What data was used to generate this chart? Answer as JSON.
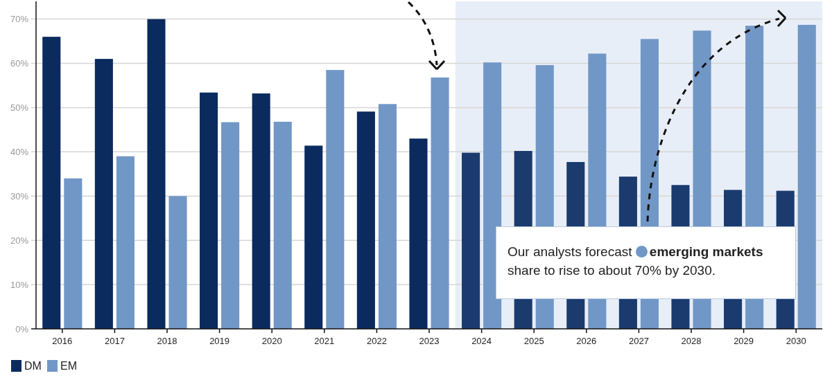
{
  "chart_data": {
    "type": "bar",
    "categories": [
      "2016",
      "2017",
      "2018",
      "2019",
      "2020",
      "2021",
      "2022",
      "2023",
      "2024",
      "2025",
      "2026",
      "2027",
      "2028",
      "2029",
      "2030"
    ],
    "series": [
      {
        "name": "DM",
        "color": "#0b2b5f",
        "colors": [
          "#0b2b5f",
          "#0b2b5f",
          "#0b2b5f",
          "#0b2b5f",
          "#0b2b5f",
          "#0b2b5f",
          "#0b2b5f",
          "#0b2b5f",
          "#1b3b6f",
          "#1b3b6f",
          "#1b3b6f",
          "#1b3b6f",
          "#1b3b6f",
          "#1b3b6f",
          "#1b3b6f"
        ],
        "values": [
          66,
          61,
          70,
          53.4,
          53.2,
          41.4,
          49.1,
          43,
          39.8,
          40.2,
          37.7,
          34.4,
          32.5,
          31.4,
          31.2
        ]
      },
      {
        "name": "EM",
        "color": "#7197c6",
        "values": [
          34,
          39,
          30,
          46.7,
          46.8,
          58.5,
          50.8,
          56.8,
          60.2,
          59.6,
          62.2,
          65.5,
          67.4,
          68.5,
          68.7
        ]
      }
    ],
    "ylim": [
      0,
      74
    ],
    "yticks": [
      {
        "value": 0,
        "label": "0%"
      },
      {
        "value": 10,
        "label": "10%"
      },
      {
        "value": 20,
        "label": "20%"
      },
      {
        "value": 30,
        "label": "30%"
      },
      {
        "value": 40,
        "label": "40%"
      },
      {
        "value": 50,
        "label": "50%"
      },
      {
        "value": 60,
        "label": "60%"
      },
      {
        "value": 70,
        "label": "70%"
      }
    ],
    "grid": "y",
    "legend": "bottom left",
    "bands": [
      {
        "axis": "x",
        "from": "2024",
        "to": "2030",
        "color": "#e8eef7"
      }
    ],
    "annotations": [
      "Our analysts forecast",
      "emerging markets",
      "share to rise to about 70% by 2030."
    ]
  }
}
